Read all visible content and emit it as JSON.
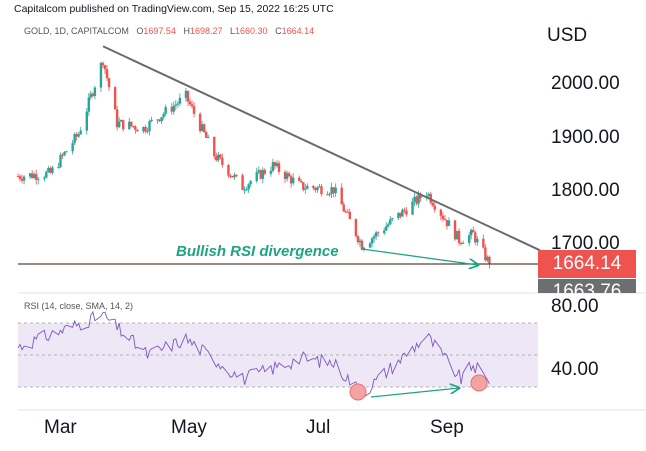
{
  "header": {
    "publisher_line": "Capitalcom published on TradingView.com, Sep 15, 2022 16:25 UTC",
    "symbol": "GOLD, 1D, CAPITALCOM",
    "ohlc": [
      {
        "key": "O",
        "value": "1697.54"
      },
      {
        "key": "H",
        "value": "1698.27"
      },
      {
        "key": "L",
        "value": "1660.30"
      },
      {
        "key": "C",
        "value": "1664.14"
      }
    ]
  },
  "price_axis": {
    "currency": "USD",
    "ticks": [
      "2000.00",
      "1900.00",
      "1800.00",
      "1700.00"
    ],
    "last_price_tag": "1664.14",
    "previous_tag": "1663.76"
  },
  "rsi_panel": {
    "label": "RSI (14, close, SMA, 14, 2)",
    "ticks": [
      "80.00",
      "40.00"
    ]
  },
  "x_axis": {
    "ticks": [
      "Mar",
      "May",
      "Jul",
      "Sep"
    ]
  },
  "annotation": {
    "text": "Bullish RSI divergence"
  },
  "colors": {
    "up": "#26a69a",
    "down": "#ef5350",
    "trendline": "#6b6b6b",
    "rsi_line": "#7e57c2",
    "rsi_band": "#ede7f6",
    "arrow": "#1ea482",
    "circle": "#f4a3a3"
  },
  "chart_data": [
    {
      "type": "candlestick",
      "title": "GOLD, 1D, CAPITALCOM",
      "ylabel": "USD",
      "ylim": [
        1635,
        2085
      ],
      "x_ticks": [
        "Mar",
        "May",
        "Jul",
        "Sep"
      ],
      "approx_close_path": [
        {
          "date": "2022-01-25",
          "close": 1830
        },
        {
          "date": "2022-02-10",
          "close": 1835
        },
        {
          "date": "2022-02-24",
          "close": 1910
        },
        {
          "date": "2022-03-08",
          "close": 2050
        },
        {
          "date": "2022-03-15",
          "close": 1930
        },
        {
          "date": "2022-03-28",
          "close": 1920
        },
        {
          "date": "2022-04-18",
          "close": 1980
        },
        {
          "date": "2022-05-02",
          "close": 1870
        },
        {
          "date": "2022-05-16",
          "close": 1810
        },
        {
          "date": "2022-05-31",
          "close": 1850
        },
        {
          "date": "2022-06-14",
          "close": 1810
        },
        {
          "date": "2022-06-30",
          "close": 1805
        },
        {
          "date": "2022-07-14",
          "close": 1700
        },
        {
          "date": "2022-07-21",
          "close": 1720
        },
        {
          "date": "2022-08-15",
          "close": 1800
        },
        {
          "date": "2022-08-31",
          "close": 1710
        },
        {
          "date": "2022-09-07",
          "close": 1720
        },
        {
          "date": "2022-09-15",
          "close": 1664.14
        }
      ],
      "last_close": 1664.14,
      "trendline": [
        {
          "date": "2022-03-08",
          "price": 2075
        },
        {
          "date": "2022-10-10",
          "price": 1690
        }
      ],
      "horizontal_line": 1664.14
    },
    {
      "type": "line",
      "title": "RSI (14, close, SMA, 14, 2)",
      "ylim": [
        25,
        90
      ],
      "bands": [
        30,
        70
      ],
      "approx_rsi_path": [
        {
          "date": "2022-01-25",
          "rsi": 55
        },
        {
          "date": "2022-03-08",
          "rsi": 75
        },
        {
          "date": "2022-03-30",
          "rsi": 50
        },
        {
          "date": "2022-04-18",
          "rsi": 60
        },
        {
          "date": "2022-05-16",
          "rsi": 35
        },
        {
          "date": "2022-06-14",
          "rsi": 48
        },
        {
          "date": "2022-06-30",
          "rsi": 45
        },
        {
          "date": "2022-07-14",
          "rsi": 26
        },
        {
          "date": "2022-08-15",
          "rsi": 62
        },
        {
          "date": "2022-09-01",
          "rsi": 35
        },
        {
          "date": "2022-09-07",
          "rsi": 44
        },
        {
          "date": "2022-09-15",
          "rsi": 32
        }
      ]
    }
  ]
}
